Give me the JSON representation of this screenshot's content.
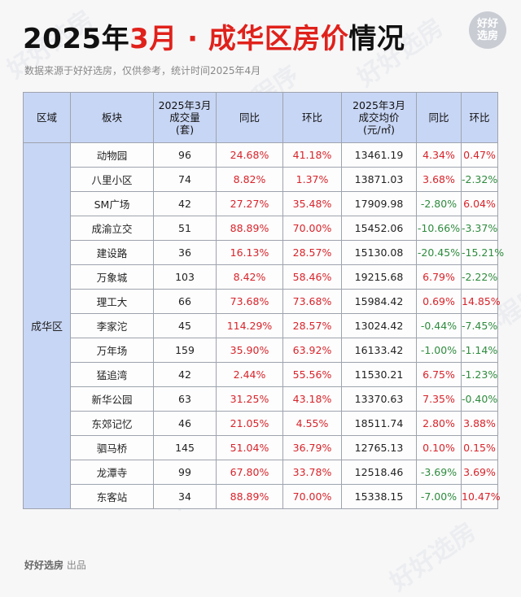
{
  "header": {
    "title_prefix": "2025年",
    "title_highlight": "3月 · 成华区房价",
    "title_suffix": "情况",
    "subtitle": "数据来源于好好选房，仅供参考，统计时间2025年4月",
    "logo_line1": "好好",
    "logo_line2": "选房"
  },
  "table": {
    "headers": {
      "region": "区域",
      "block": "板块",
      "volume_l1": "2025年3月",
      "volume_l2": "成交量",
      "volume_l3": "(套)",
      "vol_yoy": "同比",
      "vol_mom": "环比",
      "price_l1": "2025年3月",
      "price_l2": "成交均价",
      "price_l3": "(元/㎡)",
      "price_yoy": "同比",
      "price_mom": "环比"
    },
    "region_name": "成华区",
    "rows": [
      {
        "block": "动物园",
        "volume": "96",
        "vol_yoy": "24.68%",
        "vol_mom": "41.18%",
        "price": "13461.19",
        "price_yoy": "4.34%",
        "price_mom": "0.47%"
      },
      {
        "block": "八里小区",
        "volume": "74",
        "vol_yoy": "8.82%",
        "vol_mom": "1.37%",
        "price": "13871.03",
        "price_yoy": "3.68%",
        "price_mom": "-2.32%"
      },
      {
        "block": "SM广场",
        "volume": "42",
        "vol_yoy": "27.27%",
        "vol_mom": "35.48%",
        "price": "17909.98",
        "price_yoy": "-2.80%",
        "price_mom": "6.04%"
      },
      {
        "block": "成渝立交",
        "volume": "51",
        "vol_yoy": "88.89%",
        "vol_mom": "70.00%",
        "price": "15452.06",
        "price_yoy": "-10.66%",
        "price_mom": "-3.37%"
      },
      {
        "block": "建设路",
        "volume": "36",
        "vol_yoy": "16.13%",
        "vol_mom": "28.57%",
        "price": "15130.08",
        "price_yoy": "-20.45%",
        "price_mom": "-15.21%"
      },
      {
        "block": "万象城",
        "volume": "103",
        "vol_yoy": "8.42%",
        "vol_mom": "58.46%",
        "price": "19215.68",
        "price_yoy": "6.79%",
        "price_mom": "-2.22%"
      },
      {
        "block": "理工大",
        "volume": "66",
        "vol_yoy": "73.68%",
        "vol_mom": "73.68%",
        "price": "15984.42",
        "price_yoy": "0.69%",
        "price_mom": "14.85%"
      },
      {
        "block": "李家沱",
        "volume": "45",
        "vol_yoy": "114.29%",
        "vol_mom": "28.57%",
        "price": "13024.42",
        "price_yoy": "-0.44%",
        "price_mom": "-7.45%"
      },
      {
        "block": "万年场",
        "volume": "159",
        "vol_yoy": "35.90%",
        "vol_mom": "63.92%",
        "price": "16133.42",
        "price_yoy": "-1.00%",
        "price_mom": "-1.14%"
      },
      {
        "block": "猛追湾",
        "volume": "42",
        "vol_yoy": "2.44%",
        "vol_mom": "55.56%",
        "price": "11530.21",
        "price_yoy": "6.75%",
        "price_mom": "-1.23%"
      },
      {
        "block": "新华公园",
        "volume": "63",
        "vol_yoy": "31.25%",
        "vol_mom": "43.18%",
        "price": "13370.63",
        "price_yoy": "7.35%",
        "price_mom": "-0.40%"
      },
      {
        "block": "东郊记忆",
        "volume": "46",
        "vol_yoy": "21.05%",
        "vol_mom": "4.55%",
        "price": "18511.74",
        "price_yoy": "2.80%",
        "price_mom": "3.88%"
      },
      {
        "block": "驷马桥",
        "volume": "145",
        "vol_yoy": "51.04%",
        "vol_mom": "36.79%",
        "price": "12765.13",
        "price_yoy": "0.10%",
        "price_mom": "0.15%"
      },
      {
        "block": "龙潭寺",
        "volume": "99",
        "vol_yoy": "67.80%",
        "vol_mom": "33.78%",
        "price": "12518.46",
        "price_yoy": "-3.69%",
        "price_mom": "3.69%"
      },
      {
        "block": "东客站",
        "volume": "34",
        "vol_yoy": "88.89%",
        "vol_mom": "70.00%",
        "price": "15338.15",
        "price_yoy": "-7.00%",
        "price_mom": "10.47%"
      }
    ]
  },
  "footer": {
    "brand": "好好选房",
    "suffix": " 出品"
  },
  "watermarks": [
    "好好选房",
    "小程序"
  ],
  "colors": {
    "positive": "#d8242b",
    "negative": "#2e8b3e",
    "header_bg": "#c8d6f5",
    "title_highlight": "#e0211b"
  }
}
